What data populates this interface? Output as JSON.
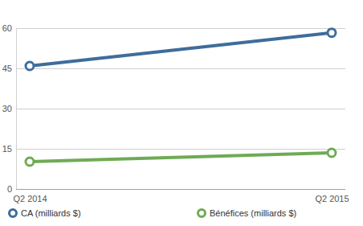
{
  "chart_data": {
    "type": "line",
    "categories": [
      "Q2 2014",
      "Q2 2015"
    ],
    "series": [
      {
        "name": "CA (milliards $)",
        "color": "#3e6d9c",
        "values": [
          45.9,
          58.3
        ],
        "marker": "circle",
        "line_style": "solid"
      },
      {
        "name": "Bénéfices (milliards $)",
        "color": "#6faa55",
        "values": [
          10.2,
          13.5
        ],
        "marker": "circle",
        "line_style": "solid"
      }
    ],
    "ylim": [
      0,
      60
    ],
    "yticks": [
      0,
      15,
      30,
      45,
      60
    ],
    "grid": true,
    "legend": "bottom"
  }
}
